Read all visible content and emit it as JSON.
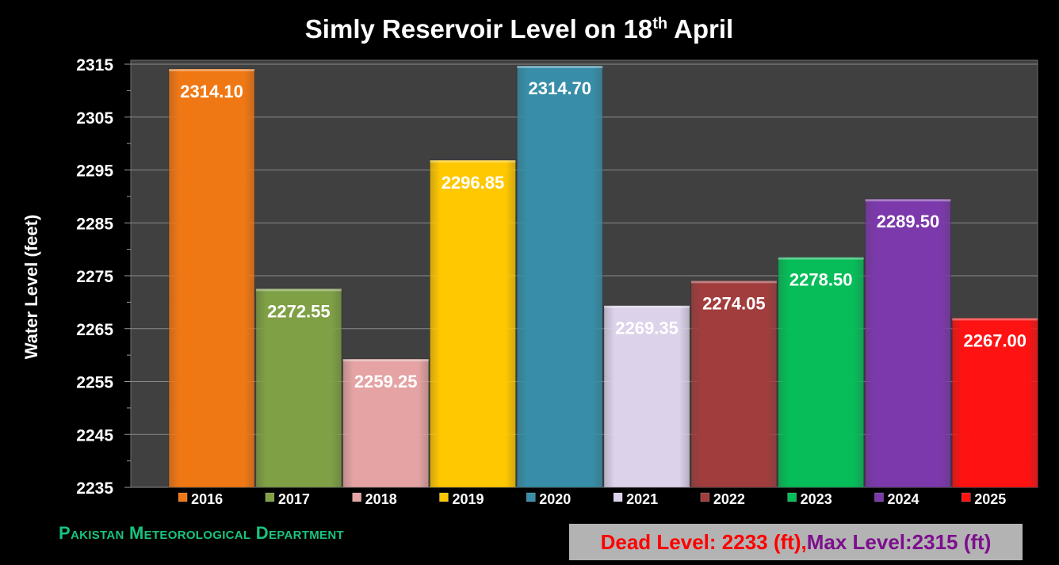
{
  "chart_data": {
    "type": "bar",
    "title": "Simly Reservoir Level on 18",
    "title_sup": "th",
    "title_end": " April",
    "ylabel": "Water Level  (feet)",
    "xlabel": "",
    "ylim": [
      2235,
      2315
    ],
    "yticks": [
      "2315",
      "2305",
      "2295",
      "2285",
      "2275",
      "2265",
      "2255",
      "2245",
      "2235"
    ],
    "grid": true,
    "legend": "bottom",
    "categories": [
      "2016",
      "2017",
      "2018",
      "2019",
      "2020",
      "2021",
      "2022",
      "2023",
      "2024",
      "2025"
    ],
    "values": [
      2314.1,
      2272.55,
      2259.25,
      2296.85,
      2314.7,
      2269.35,
      2274.05,
      2278.5,
      2289.5,
      2267.0
    ],
    "value_labels": [
      "2314.10",
      "2272.55",
      "2259.25",
      "2296.85",
      "2314.70",
      "2269.35",
      "2274.05",
      "2278.50",
      "2289.50",
      "2267.00"
    ],
    "colors": [
      "#f07814",
      "#7fa045",
      "#e5a3a3",
      "#ffc800",
      "#388ea8",
      "#dcd2ea",
      "#a23d3d",
      "#06bd59",
      "#7c39ab",
      "#ff1212"
    ]
  },
  "footer": {
    "organization": "Pakistan Meteorological Department",
    "dead_level": "Dead Level: 2233 (ft)",
    "separator": ",",
    "max_level": "Max Level:2315 (ft)"
  }
}
